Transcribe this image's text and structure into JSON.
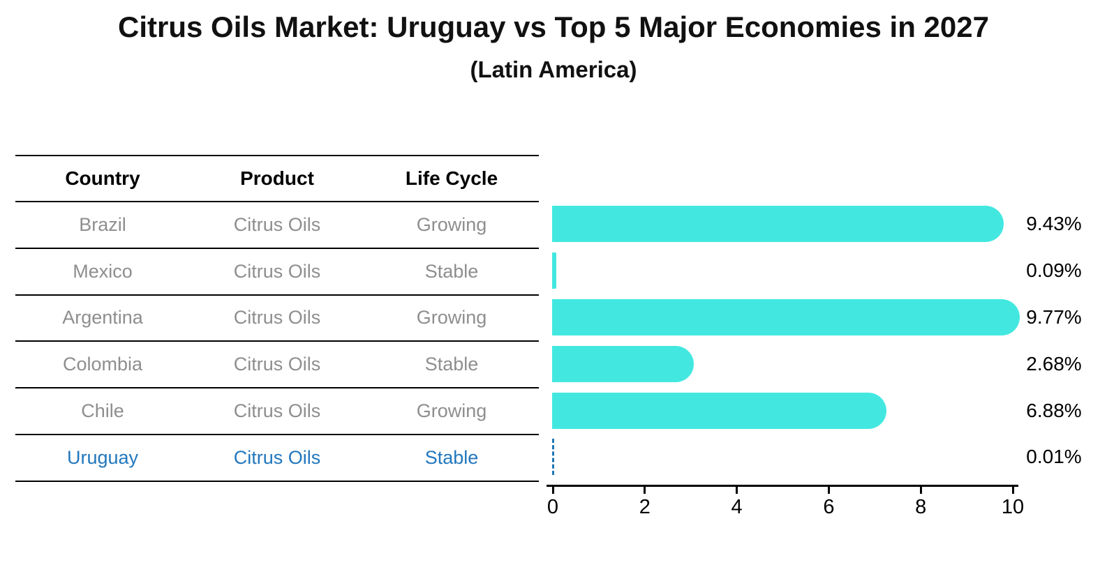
{
  "title": "Citrus Oils Market: Uruguay vs Top 5 Major Economies in 2027",
  "subtitle": "(Latin America)",
  "table": {
    "headers": [
      "Country",
      "Product",
      "Life Cycle"
    ],
    "rows": [
      {
        "country": "Brazil",
        "product": "Citrus Oils",
        "life_cycle": "Growing",
        "highlighted": false
      },
      {
        "country": "Mexico",
        "product": "Citrus Oils",
        "life_cycle": "Stable",
        "highlighted": false
      },
      {
        "country": "Argentina",
        "product": "Citrus Oils",
        "life_cycle": "Growing",
        "highlighted": false
      },
      {
        "country": "Colombia",
        "product": "Citrus Oils",
        "life_cycle": "Stable",
        "highlighted": false
      },
      {
        "country": "Chile",
        "product": "Citrus Oils",
        "life_cycle": "Growing",
        "highlighted": false
      },
      {
        "country": "Uruguay",
        "product": "Citrus Oils",
        "life_cycle": "Stable",
        "highlighted": true
      }
    ]
  },
  "chart_data": {
    "type": "bar",
    "orientation": "horizontal",
    "categories": [
      "Brazil",
      "Mexico",
      "Argentina",
      "Colombia",
      "Chile",
      "Uruguay"
    ],
    "values": [
      9.43,
      0.09,
      9.77,
      2.68,
      6.88,
      0.01
    ],
    "value_labels": [
      "9.43%",
      "0.09%",
      "9.77%",
      "2.68%",
      "6.88%",
      "0.01%"
    ],
    "xlim": [
      0,
      10
    ],
    "x_ticks": [
      0,
      2,
      4,
      6,
      8,
      10
    ],
    "grid": false,
    "legend": "none",
    "bar_color": "#42e8e0",
    "highlight_index": 5,
    "highlight_style": "dashed-outline"
  },
  "colors": {
    "bar": "#42e8e0",
    "highlight_blue": "#2277bd",
    "dashed_bar_blue": "#1f77b4",
    "row_text_gray": "#8e8e8e",
    "axis_black": "#000000"
  }
}
